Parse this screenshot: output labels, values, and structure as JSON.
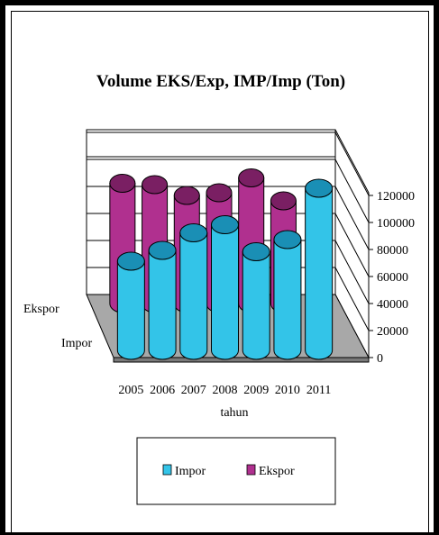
{
  "chart_data": {
    "type": "bar",
    "title": "Volume EKS/Exp, IMP/Imp (Ton)",
    "xlabel": "tahun",
    "ylabel": "",
    "categories": [
      "2005",
      "2006",
      "2007",
      "2008",
      "2009",
      "2010",
      "2011"
    ],
    "depth_labels": [
      "Ekspor",
      "Impor"
    ],
    "series": [
      {
        "name": "Impor",
        "values": [
          66000,
          74000,
          87000,
          93000,
          73000,
          82000,
          120000
        ]
      },
      {
        "name": "Ekspor",
        "values": [
          89000,
          88000,
          80000,
          82000,
          93000,
          76000,
          0
        ]
      }
    ],
    "ylim": [
      0,
      120000
    ],
    "yticks": [
      "0",
      "20000",
      "40000",
      "60000",
      "80000",
      "100000",
      "120000"
    ],
    "ytick_values": [
      0,
      20000,
      40000,
      60000,
      80000,
      100000,
      120000
    ],
    "legend_position": "bottom",
    "grid": true,
    "colors": {
      "impor": "#33c4e8",
      "impor_dark": "#1a8fb5",
      "ekspor": "#b0308f",
      "ekspor_dark": "#7a1f63",
      "floor": "#a8a8a8",
      "floor_dark": "#7a7a7a"
    }
  }
}
